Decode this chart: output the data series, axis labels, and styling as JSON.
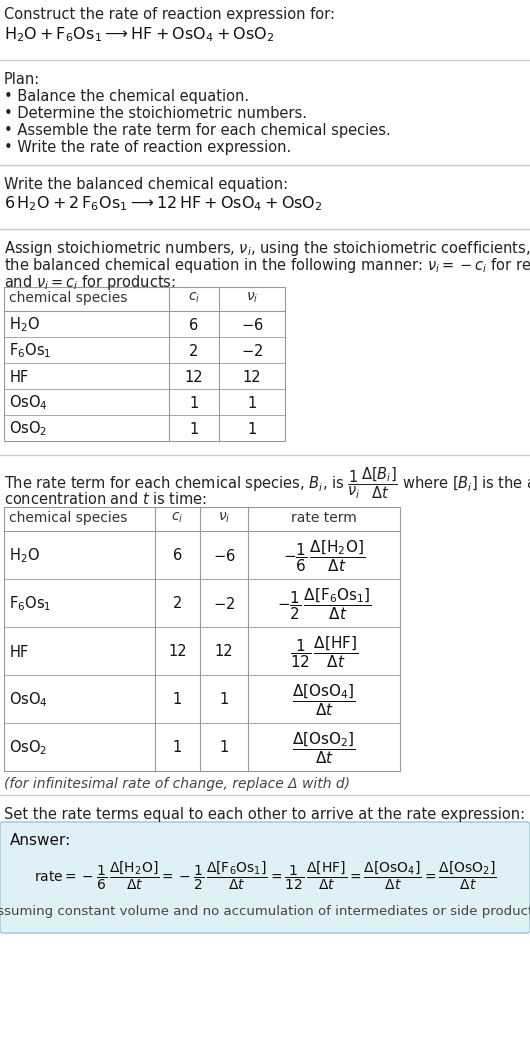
{
  "bg_color": "#ffffff",
  "text_color": "#333333",
  "title_line1": "Construct the rate of reaction expression for:",
  "plan_header": "Plan:",
  "plan_items": [
    "• Balance the chemical equation.",
    "• Determine the stoichiometric numbers.",
    "• Assemble the rate term for each chemical species.",
    "• Write the rate of reaction expression."
  ],
  "balanced_header": "Write the balanced chemical equation:",
  "set_equal_text": "Set the rate terms equal to each other to arrive at the rate expression:",
  "infinitesimal_note": "(for infinitesimal rate of change, replace Δ with d)",
  "answer_label": "Answer:",
  "answer_note": "(assuming constant volume and no accumulation of intermediates or side products)",
  "answer_box_color": "#dff0f7",
  "answer_border_color": "#aaccdd",
  "divider_color": "#cccccc",
  "table_border_color": "#999999",
  "table_row_color": "#dddddd"
}
